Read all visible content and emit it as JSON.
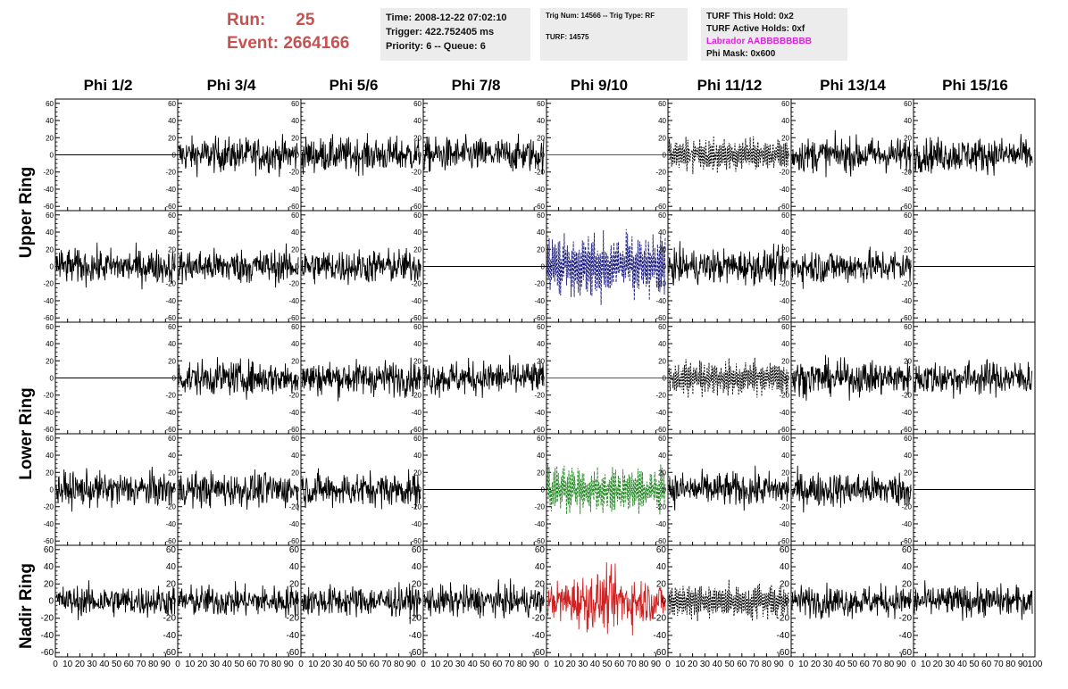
{
  "run": {
    "run_label": "Run:",
    "run_value": "25",
    "event_label": "Event:",
    "event_value": "2664166"
  },
  "time_box": {
    "time": "Time: 2008-12-22 07:02:10",
    "trigger": "Trigger: 422.752405 ms",
    "priority": "Priority: 6 -- Queue: 6"
  },
  "trig_box": {
    "trig": "Trig Num: 14566 -- Trig Type: RF",
    "turf": "TURF: 14575"
  },
  "turf_box": {
    "this_hold": "TURF This Hold: 0x2",
    "active_holds": "TURF Active Holds: 0xf",
    "labrador": "Labrador AABBBBBBBB",
    "phi_mask": "Phi Mask: 0x600"
  },
  "colors": {
    "run_text": "#c85050",
    "labrador": "#e020e0",
    "box_bg": "#ececec",
    "trace": "#000000",
    "flat_red": "#cc2222",
    "blue_trace": "#1a1a80",
    "green_trace": "#228822",
    "red_trace": "#cc2222"
  },
  "phi_headers": [
    "Phi 1/2",
    "Phi 3/4",
    "Phi 5/6",
    "Phi 7/8",
    "Phi 9/10",
    "Phi 11/12",
    "Phi 13/14",
    "Phi 15/16"
  ],
  "ring_labels": {
    "upper": "Upper Ring",
    "lower": "Lower Ring",
    "nadir": "Nadir Ring"
  },
  "axis": {
    "y_ticks": [
      "60",
      "40",
      "20",
      "0",
      "-20",
      "-40",
      "-60"
    ],
    "x_ticks": [
      "0",
      "10",
      "20",
      "30",
      "40",
      "50",
      "60",
      "70",
      "80",
      "90",
      "100"
    ],
    "ylim": [
      -65,
      65
    ],
    "xlim": [
      0,
      100
    ]
  },
  "panels": [
    [
      "flat",
      "noise",
      "noise",
      "noise",
      "flat-red",
      "dashed",
      "noise",
      "noise"
    ],
    [
      "noise",
      "noise",
      "noise",
      "flat",
      "blue-dashed",
      "noise",
      "noise",
      "flat"
    ],
    [
      "flat",
      "noise",
      "noise",
      "noise",
      "flat-red",
      "dashed",
      "noise",
      "noise"
    ],
    [
      "noise",
      "noise",
      "noise",
      "flat",
      "green-dashed",
      "noise",
      "noise",
      "flat"
    ],
    [
      "noise",
      "noise",
      "noise",
      "noise",
      "red-noise",
      "dashed",
      "noise",
      "noise"
    ]
  ]
}
